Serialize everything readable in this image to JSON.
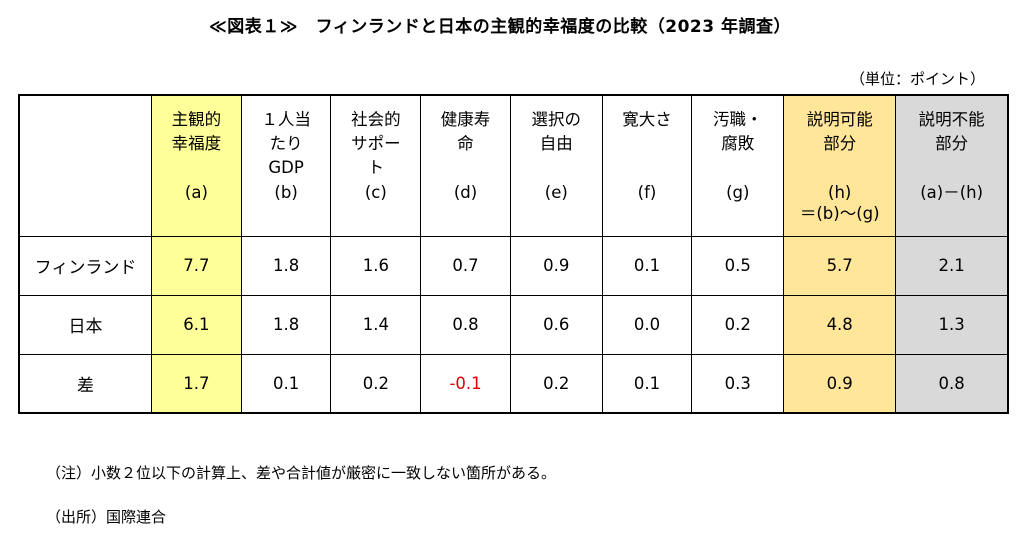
{
  "title": "≪図表１≫　フィンランドと日本の主観的幸福度の比較（2023 年調査）",
  "unit": "（単位：ポイント）",
  "columns": [
    {
      "name": "主観的\n幸福度",
      "code": "(a)",
      "code2": "",
      "style": "hl-y"
    },
    {
      "name": "１人当\nたり\nGDP",
      "code": "(b)",
      "code2": "",
      "style": ""
    },
    {
      "name": "社会的\nサポー\nト",
      "code": "(c)",
      "code2": "",
      "style": ""
    },
    {
      "name": "健康寿\n命",
      "code": "(d)",
      "code2": "",
      "style": ""
    },
    {
      "name": "選択の\n自由",
      "code": "(e)",
      "code2": "",
      "style": ""
    },
    {
      "name": "寛大さ",
      "code": "(f)",
      "code2": "",
      "style": ""
    },
    {
      "name": "汚職・\n腐敗",
      "code": "(g)",
      "code2": "",
      "style": ""
    },
    {
      "name": "説明可能\n部分",
      "code": "(h)",
      "code2": "＝(b)～(g)",
      "style": "hl-o"
    },
    {
      "name": "説明不能\n部分",
      "code": "(a)－(h)",
      "code2": "",
      "style": "hl-g"
    }
  ],
  "rows": [
    {
      "label": "フィンランド",
      "values": [
        "7.7",
        "1.8",
        "1.6",
        "0.7",
        "0.9",
        "0.1",
        "0.5",
        "5.7",
        "2.1"
      ]
    },
    {
      "label": "日本",
      "values": [
        "6.1",
        "1.8",
        "1.4",
        "0.8",
        "0.6",
        "0.0",
        "0.2",
        "4.8",
        "1.3"
      ]
    },
    {
      "label": "差",
      "values": [
        "1.7",
        "0.1",
        "0.2",
        "-0.1",
        "0.2",
        "0.1",
        "0.3",
        "0.9",
        "0.8"
      ]
    }
  ],
  "negative_color": "#e00000",
  "notes": {
    "note1": "（注）小数２位以下の計算上、差や合計値が厳密に一致しない箇所がある。",
    "source": "（出所）国際連合"
  }
}
